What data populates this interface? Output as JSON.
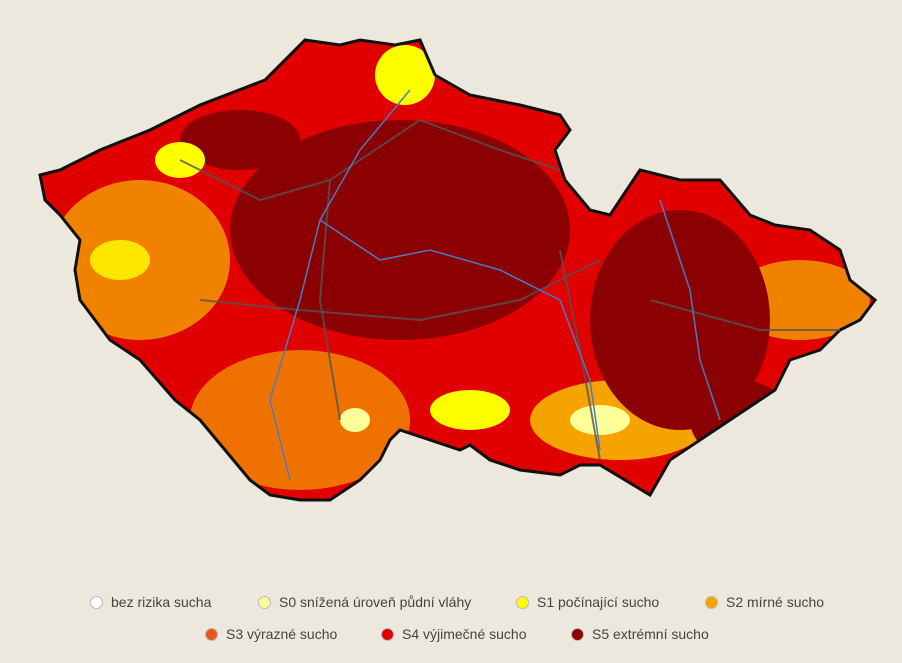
{
  "legend": {
    "items": [
      {
        "label": "bez rizika sucha",
        "color": "#ffffff"
      },
      {
        "label": "S0 snížená úroveň půdní vláhy",
        "color": "#ffff99"
      },
      {
        "label": "S1 počínající sucho",
        "color": "#ffff00"
      },
      {
        "label": "S2 mírné sucho",
        "color": "#f5a300"
      },
      {
        "label": "S3 výrazné sucho",
        "color": "#e8561c"
      },
      {
        "label": "S4 výjimečné sucho",
        "color": "#e00000"
      },
      {
        "label": "S5 extrémní sucho",
        "color": "#8b0000"
      }
    ]
  }
}
